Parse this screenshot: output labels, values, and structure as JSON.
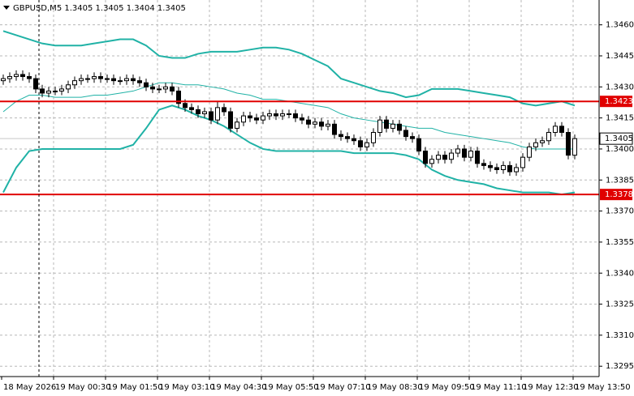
{
  "chart_data": {
    "type": "candlestick",
    "title": "GBPUSD,M5  1.3405 1.3405 1.3404 1.3405",
    "x_labels": [
      "18 May 2026",
      "19 May 00:30",
      "19 May 01:50",
      "19 May 03:10",
      "19 May 04:30",
      "19 May 05:50",
      "19 May 07:10",
      "19 May 08:30",
      "19 May 09:50",
      "19 May 11:10",
      "19 May 12:30",
      "19 May 13:50"
    ],
    "ylim": [
      1.329,
      1.3472
    ],
    "yticks": [
      {
        "value": 1.346,
        "label": "1.3460"
      },
      1.3445,
      {
        "value": 1.343,
        "label": "1.3430"
      },
      1.3415,
      {
        "value": 1.34,
        "label": "1.3400"
      },
      1.3385,
      {
        "value": 1.337,
        "label": "1.3370"
      },
      1.3355,
      {
        "value": 1.334,
        "label": "1.3340"
      },
      1.3325,
      {
        "value": 1.331,
        "label": "1.3310"
      },
      1.3295
    ],
    "grid": true,
    "open": [
      1.3433,
      1.3434,
      1.3435,
      1.3436,
      1.3435,
      1.3434,
      1.3429,
      1.3427,
      1.3428,
      1.3428,
      1.3429,
      1.3431,
      1.3433,
      1.3434,
      1.3434,
      1.3435,
      1.3434,
      1.3434,
      1.3433,
      1.3433,
      1.3434,
      1.3433,
      1.3432,
      1.343,
      1.3429,
      1.3429,
      1.343,
      1.3428,
      1.3422,
      1.342,
      1.3419,
      1.3417,
      1.3418,
      1.3414,
      1.342,
      1.3418,
      1.341,
      1.3413,
      1.3416,
      1.3415,
      1.3414,
      1.3416,
      1.3417,
      1.3416,
      1.3417,
      1.3417,
      1.3415,
      1.3414,
      1.3412,
      1.3413,
      1.3411,
      1.3412,
      1.3407,
      1.3406,
      1.3405,
      1.3404,
      1.3401,
      1.3403,
      1.3408,
      1.3414,
      1.341,
      1.3412,
      1.3409,
      1.3406,
      1.3405,
      1.3399,
      1.3393,
      1.3395,
      1.3397,
      1.3395,
      1.3398,
      1.34,
      1.3396,
      1.3399,
      1.3393,
      1.3392,
      1.3391,
      1.339,
      1.3392,
      1.3389,
      1.3391,
      1.3396,
      1.3401,
      1.3403,
      1.3404,
      1.3408,
      1.3411,
      1.3408,
      1.3397
    ],
    "high": [
      1.3436,
      1.3437,
      1.3438,
      1.3438,
      1.3437,
      1.3436,
      1.3431,
      1.343,
      1.343,
      1.3431,
      1.3433,
      1.3435,
      1.3436,
      1.3436,
      1.3437,
      1.3437,
      1.3436,
      1.3436,
      1.3435,
      1.3436,
      1.3436,
      1.3435,
      1.3434,
      1.3432,
      1.3431,
      1.3432,
      1.3432,
      1.343,
      1.3424,
      1.3422,
      1.3421,
      1.342,
      1.342,
      1.3423,
      1.3422,
      1.342,
      1.3415,
      1.3418,
      1.3418,
      1.3417,
      1.3418,
      1.3419,
      1.3419,
      1.3419,
      1.3419,
      1.3419,
      1.3417,
      1.3416,
      1.3415,
      1.3415,
      1.3414,
      1.3414,
      1.3409,
      1.3408,
      1.3407,
      1.3406,
      1.3405,
      1.341,
      1.3416,
      1.3416,
      1.3414,
      1.3414,
      1.3411,
      1.3408,
      1.3407,
      1.3401,
      1.3397,
      1.3399,
      1.3399,
      1.34,
      1.3402,
      1.3402,
      1.3401,
      1.3401,
      1.3395,
      1.3394,
      1.3393,
      1.3394,
      1.3394,
      1.3393,
      1.3398,
      1.3403,
      1.3405,
      1.3406,
      1.341,
      1.3413,
      1.3413,
      1.341,
      1.3407
    ],
    "low": [
      1.3431,
      1.3432,
      1.3433,
      1.3433,
      1.3432,
      1.3427,
      1.3425,
      1.3425,
      1.3426,
      1.3426,
      1.3427,
      1.3429,
      1.3431,
      1.3432,
      1.3432,
      1.3432,
      1.3432,
      1.3431,
      1.3431,
      1.3431,
      1.3431,
      1.343,
      1.3428,
      1.3427,
      1.3427,
      1.3427,
      1.3426,
      1.342,
      1.3418,
      1.3417,
      1.3415,
      1.3415,
      1.3412,
      1.3412,
      1.3416,
      1.3408,
      1.3408,
      1.3411,
      1.3413,
      1.3412,
      1.3412,
      1.3414,
      1.3414,
      1.3414,
      1.3415,
      1.3413,
      1.3412,
      1.341,
      1.341,
      1.3409,
      1.3409,
      1.3405,
      1.3404,
      1.3403,
      1.3402,
      1.3399,
      1.3399,
      1.3401,
      1.3406,
      1.3408,
      1.3408,
      1.3407,
      1.3404,
      1.3403,
      1.3397,
      1.3391,
      1.3391,
      1.3393,
      1.3393,
      1.3393,
      1.3396,
      1.3394,
      1.3394,
      1.3391,
      1.339,
      1.3389,
      1.3388,
      1.3388,
      1.3387,
      1.3387,
      1.3389,
      1.3394,
      1.3399,
      1.3401,
      1.3402,
      1.3406,
      1.3406,
      1.3395,
      1.3395
    ],
    "close": [
      1.3434,
      1.3435,
      1.3436,
      1.3435,
      1.3434,
      1.3429,
      1.3427,
      1.3428,
      1.3428,
      1.3429,
      1.3431,
      1.3433,
      1.3434,
      1.3434,
      1.3435,
      1.3434,
      1.3434,
      1.3433,
      1.3433,
      1.3434,
      1.3433,
      1.3432,
      1.343,
      1.3429,
      1.3429,
      1.343,
      1.3428,
      1.3422,
      1.342,
      1.3419,
      1.3417,
      1.3418,
      1.3414,
      1.342,
      1.3418,
      1.341,
      1.3413,
      1.3416,
      1.3415,
      1.3414,
      1.3416,
      1.3417,
      1.3416,
      1.3417,
      1.3417,
      1.3415,
      1.3414,
      1.3412,
      1.3413,
      1.3411,
      1.3412,
      1.3407,
      1.3406,
      1.3405,
      1.3404,
      1.3401,
      1.3403,
      1.3408,
      1.3414,
      1.341,
      1.3412,
      1.3409,
      1.3406,
      1.3405,
      1.3399,
      1.3393,
      1.3395,
      1.3397,
      1.3395,
      1.3398,
      1.34,
      1.3396,
      1.3399,
      1.3393,
      1.3392,
      1.3391,
      1.339,
      1.3392,
      1.3389,
      1.3391,
      1.3396,
      1.3401,
      1.3403,
      1.3404,
      1.3408,
      1.3411,
      1.3408,
      1.3397,
      1.3405
    ],
    "bands": [
      {
        "color": "#20b2a6",
        "values": [
          1.3457,
          1.3455,
          1.3453,
          1.3451,
          1.345,
          1.345,
          1.345,
          1.3451,
          1.3452,
          1.3453,
          1.3453,
          1.345,
          1.3445,
          1.3444,
          1.3444,
          1.3446,
          1.3447,
          1.3447,
          1.3447,
          1.3448,
          1.3449,
          1.3449,
          1.3448,
          1.3446,
          1.3443,
          1.344,
          1.3434,
          1.3432,
          1.343,
          1.3428,
          1.3427,
          1.3425,
          1.3426,
          1.3429,
          1.3429,
          1.3429,
          1.3428,
          1.3427,
          1.3426,
          1.3425,
          1.3422,
          1.3421,
          1.3422,
          1.3423,
          1.3421
        ]
      },
      {
        "color": "#20b2a6",
        "values": [
          1.3418,
          1.3423,
          1.3426,
          1.3426,
          1.3425,
          1.3425,
          1.3425,
          1.3426,
          1.3426,
          1.3427,
          1.3428,
          1.343,
          1.3432,
          1.3432,
          1.3431,
          1.3431,
          1.343,
          1.3429,
          1.3427,
          1.3426,
          1.3424,
          1.3424,
          1.3423,
          1.3422,
          1.3421,
          1.342,
          1.3417,
          1.3415,
          1.3414,
          1.3413,
          1.3412,
          1.3411,
          1.341,
          1.341,
          1.3408,
          1.3407,
          1.3406,
          1.3405,
          1.3404,
          1.3403,
          1.3401,
          1.34,
          1.34,
          1.34,
          1.34
        ]
      },
      {
        "color": "#20b2a6",
        "values": [
          1.3379,
          1.3391,
          1.3399,
          1.34,
          1.34,
          1.34,
          1.34,
          1.34,
          1.34,
          1.34,
          1.3402,
          1.341,
          1.3419,
          1.3421,
          1.3419,
          1.3416,
          1.3414,
          1.3411,
          1.3407,
          1.3403,
          1.34,
          1.3399,
          1.3399,
          1.3399,
          1.3399,
          1.3399,
          1.3399,
          1.3398,
          1.3398,
          1.3398,
          1.3398,
          1.3397,
          1.3395,
          1.339,
          1.3387,
          1.3385,
          1.3384,
          1.3383,
          1.3381,
          1.338,
          1.3379,
          1.3379,
          1.3379,
          1.3378,
          1.3379
        ]
      }
    ],
    "levels": [
      {
        "value": 1.3423,
        "color": "#e00000"
      },
      {
        "value": 1.3378,
        "color": "#e00000"
      }
    ],
    "last_price": 1.3405
  }
}
